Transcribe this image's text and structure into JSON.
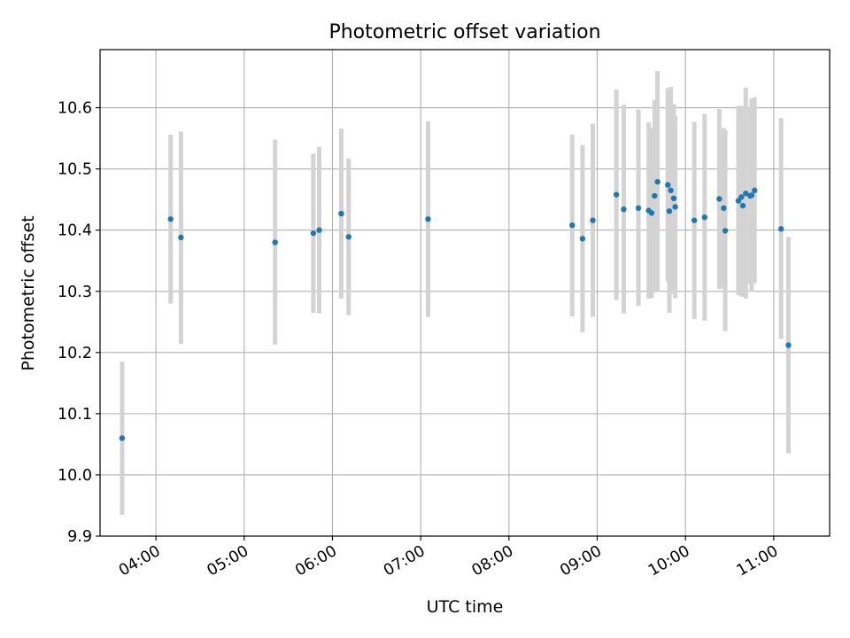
{
  "chart_data": {
    "type": "scatter",
    "title": "Photometric offset variation",
    "xlabel": "UTC time",
    "ylabel": "Photometric offset",
    "x_tick_labels": [
      "04:00",
      "05:00",
      "06:00",
      "07:00",
      "08:00",
      "09:00",
      "10:00",
      "11:00"
    ],
    "y_tick_labels": [
      "9.9",
      "10.0",
      "10.1",
      "10.2",
      "10.3",
      "10.4",
      "10.5",
      "10.6"
    ],
    "xlim": [
      "03:22",
      "11:38"
    ],
    "ylim": [
      9.9,
      10.695
    ],
    "grid": true,
    "marker_color": "#1f77b4",
    "errorbar_color": "#d3d3d3",
    "series": [
      {
        "points": [
          {
            "x": "03:37",
            "y": 10.06,
            "ylow": 9.935,
            "yhigh": 10.185
          },
          {
            "x": "04:10",
            "y": 10.418,
            "ylow": 10.28,
            "yhigh": 10.556
          },
          {
            "x": "04:17",
            "y": 10.388,
            "ylow": 10.214,
            "yhigh": 10.561
          },
          {
            "x": "05:21",
            "y": 10.38,
            "ylow": 10.213,
            "yhigh": 10.548
          },
          {
            "x": "05:47",
            "y": 10.395,
            "ylow": 10.265,
            "yhigh": 10.525
          },
          {
            "x": "05:51",
            "y": 10.4,
            "ylow": 10.264,
            "yhigh": 10.536
          },
          {
            "x": "06:06",
            "y": 10.427,
            "ylow": 10.288,
            "yhigh": 10.566
          },
          {
            "x": "06:11",
            "y": 10.389,
            "ylow": 10.261,
            "yhigh": 10.517
          },
          {
            "x": "07:05",
            "y": 10.418,
            "ylow": 10.258,
            "yhigh": 10.578
          },
          {
            "x": "08:43",
            "y": 10.408,
            "ylow": 10.259,
            "yhigh": 10.556
          },
          {
            "x": "08:50",
            "y": 10.386,
            "ylow": 10.233,
            "yhigh": 10.539
          },
          {
            "x": "08:57",
            "y": 10.416,
            "ylow": 10.258,
            "yhigh": 10.574
          },
          {
            "x": "09:13",
            "y": 10.458,
            "ylow": 10.286,
            "yhigh": 10.63
          },
          {
            "x": "09:18",
            "y": 10.434,
            "ylow": 10.264,
            "yhigh": 10.605
          },
          {
            "x": "09:28",
            "y": 10.436,
            "ylow": 10.276,
            "yhigh": 10.597
          },
          {
            "x": "09:35",
            "y": 10.432,
            "ylow": 10.288,
            "yhigh": 10.576
          },
          {
            "x": "09:37",
            "y": 10.428,
            "ylow": 10.289,
            "yhigh": 10.567
          },
          {
            "x": "09:39",
            "y": 10.456,
            "ylow": 10.298,
            "yhigh": 10.613
          },
          {
            "x": "09:41",
            "y": 10.479,
            "ylow": 10.299,
            "yhigh": 10.66
          },
          {
            "x": "09:48",
            "y": 10.474,
            "ylow": 10.316,
            "yhigh": 10.632
          },
          {
            "x": "09:49",
            "y": 10.431,
            "ylow": 10.265,
            "yhigh": 10.597
          },
          {
            "x": "09:50",
            "y": 10.465,
            "ylow": 10.296,
            "yhigh": 10.634
          },
          {
            "x": "09:52",
            "y": 10.452,
            "ylow": 10.298,
            "yhigh": 10.606
          },
          {
            "x": "09:53",
            "y": 10.438,
            "ylow": 10.289,
            "yhigh": 10.587
          },
          {
            "x": "10:06",
            "y": 10.416,
            "ylow": 10.255,
            "yhigh": 10.577
          },
          {
            "x": "10:13",
            "y": 10.421,
            "ylow": 10.252,
            "yhigh": 10.59
          },
          {
            "x": "10:23",
            "y": 10.451,
            "ylow": 10.304,
            "yhigh": 10.598
          },
          {
            "x": "10:26",
            "y": 10.436,
            "ylow": 10.306,
            "yhigh": 10.567
          },
          {
            "x": "10:27",
            "y": 10.399,
            "ylow": 10.235,
            "yhigh": 10.563
          },
          {
            "x": "10:36",
            "y": 10.448,
            "ylow": 10.294,
            "yhigh": 10.603
          },
          {
            "x": "10:38",
            "y": 10.454,
            "ylow": 10.292,
            "yhigh": 10.603
          },
          {
            "x": "10:39",
            "y": 10.44,
            "ylow": 10.291,
            "yhigh": 10.59
          },
          {
            "x": "10:41",
            "y": 10.46,
            "ylow": 10.288,
            "yhigh": 10.633
          },
          {
            "x": "10:44",
            "y": 10.456,
            "ylow": 10.312,
            "yhigh": 10.6
          },
          {
            "x": "10:45",
            "y": 10.457,
            "ylow": 10.299,
            "yhigh": 10.615
          },
          {
            "x": "10:47",
            "y": 10.465,
            "ylow": 10.313,
            "yhigh": 10.617
          },
          {
            "x": "11:05",
            "y": 10.402,
            "ylow": 10.222,
            "yhigh": 10.583
          },
          {
            "x": "11:10",
            "y": 10.212,
            "ylow": 10.035,
            "yhigh": 10.389
          }
        ]
      }
    ]
  }
}
